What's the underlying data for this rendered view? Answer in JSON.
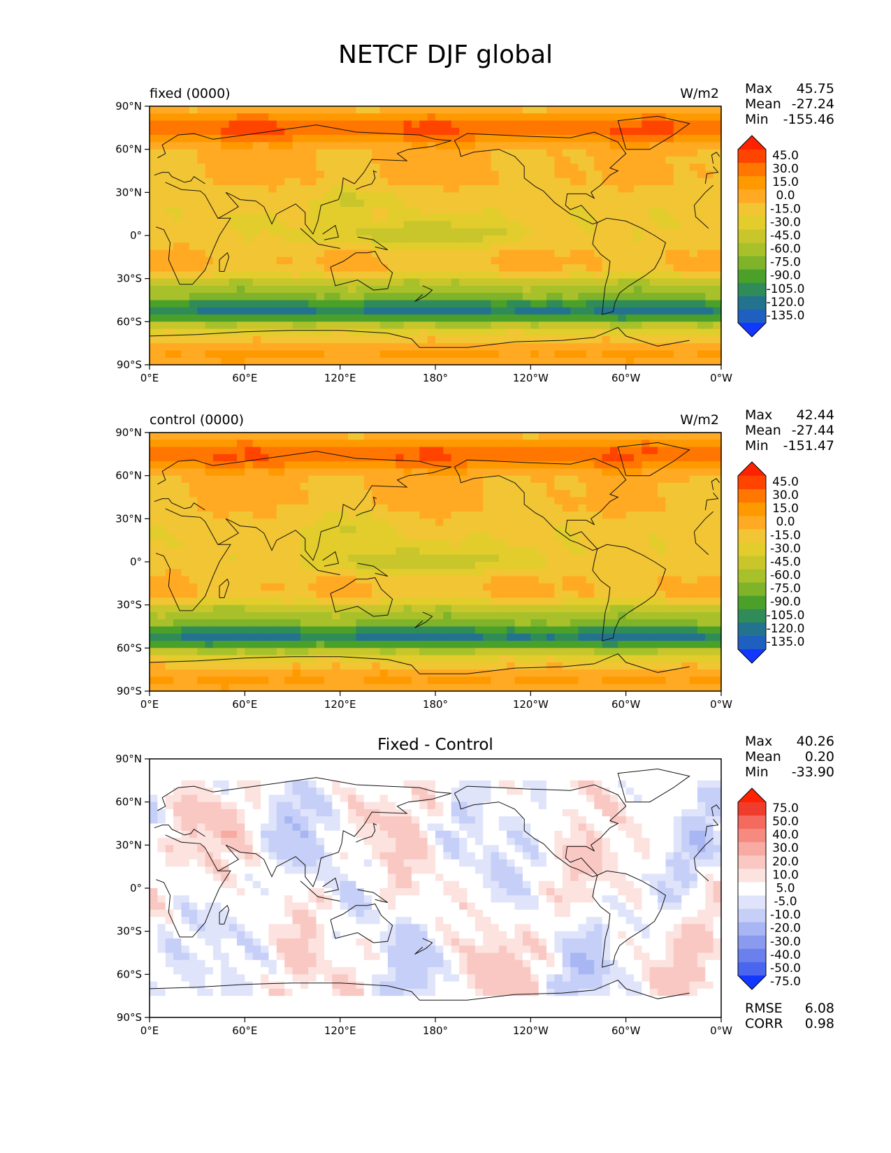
{
  "figure": {
    "title": "NETCF DJF global"
  },
  "axes": {
    "x_ticks": [
      "0°E",
      "60°E",
      "120°E",
      "180°",
      "120°W",
      "60°W",
      "0°W"
    ],
    "y_ticks": [
      "90°N",
      "60°N",
      "30°N",
      "0°",
      "30°S",
      "60°S",
      "90°S"
    ]
  },
  "panels": [
    {
      "left_label": "fixed (0000)",
      "center_title": "",
      "units": "W/m2",
      "stats": {
        "max_label": "Max",
        "max": "45.75",
        "mean_label": "Mean",
        "mean": "-27.24",
        "min_label": "Min",
        "min": "-155.46"
      },
      "colorbar": {
        "levels": [
          "45.0",
          "30.0",
          "15.0",
          "0.0",
          "-15.0",
          "-30.0",
          "-45.0",
          "-60.0",
          "-75.0",
          "-90.0",
          "-105.0",
          "-120.0",
          "-135.0"
        ],
        "colors": [
          "#ff2200",
          "#ff4400",
          "#ff7700",
          "#ff9900",
          "#ffaa22",
          "#f2c534",
          "#e2cd2c",
          "#c9c62c",
          "#a8c12a",
          "#7eb32a",
          "#4ba02a",
          "#2f8c58",
          "#23738f",
          "#1f5fbf",
          "#1238ff"
        ]
      }
    },
    {
      "left_label": "control (0000)",
      "center_title": "",
      "units": "W/m2",
      "stats": {
        "max_label": "Max",
        "max": "42.44",
        "mean_label": "Mean",
        "mean": "-27.44",
        "min_label": "Min",
        "min": "-151.47"
      },
      "colorbar": {
        "levels": [
          "45.0",
          "30.0",
          "15.0",
          "0.0",
          "-15.0",
          "-30.0",
          "-45.0",
          "-60.0",
          "-75.0",
          "-90.0",
          "-105.0",
          "-120.0",
          "-135.0"
        ],
        "colors": [
          "#ff2200",
          "#ff4400",
          "#ff7700",
          "#ff9900",
          "#ffaa22",
          "#f2c534",
          "#e2cd2c",
          "#c9c62c",
          "#a8c12a",
          "#7eb32a",
          "#4ba02a",
          "#2f8c58",
          "#23738f",
          "#1f5fbf",
          "#1238ff"
        ]
      }
    },
    {
      "left_label": "",
      "center_title": "Fixed - Control",
      "units": "",
      "stats": {
        "max_label": "Max",
        "max": "40.26",
        "mean_label": "Mean",
        "mean": "0.20",
        "min_label": "Min",
        "min": "-33.90"
      },
      "colorbar": {
        "levels": [
          "75.0",
          "50.0",
          "40.0",
          "30.0",
          "20.0",
          "10.0",
          "5.0",
          "-5.0",
          "-10.0",
          "-20.0",
          "-30.0",
          "-40.0",
          "-50.0",
          "-75.0"
        ],
        "colors": [
          "#ff2200",
          "#f03c2c",
          "#f46a5e",
          "#f68a80",
          "#f8aba3",
          "#fac8c2",
          "#fce3df",
          "#ffffff",
          "#dfe4fb",
          "#c6cff7",
          "#a8b6f3",
          "#8a9bef",
          "#6a80ec",
          "#4a66ee",
          "#1238ff"
        ]
      },
      "rmse_label": "RMSE",
      "rmse": "6.08",
      "corr_label": "CORR",
      "corr": "0.98"
    }
  ]
}
